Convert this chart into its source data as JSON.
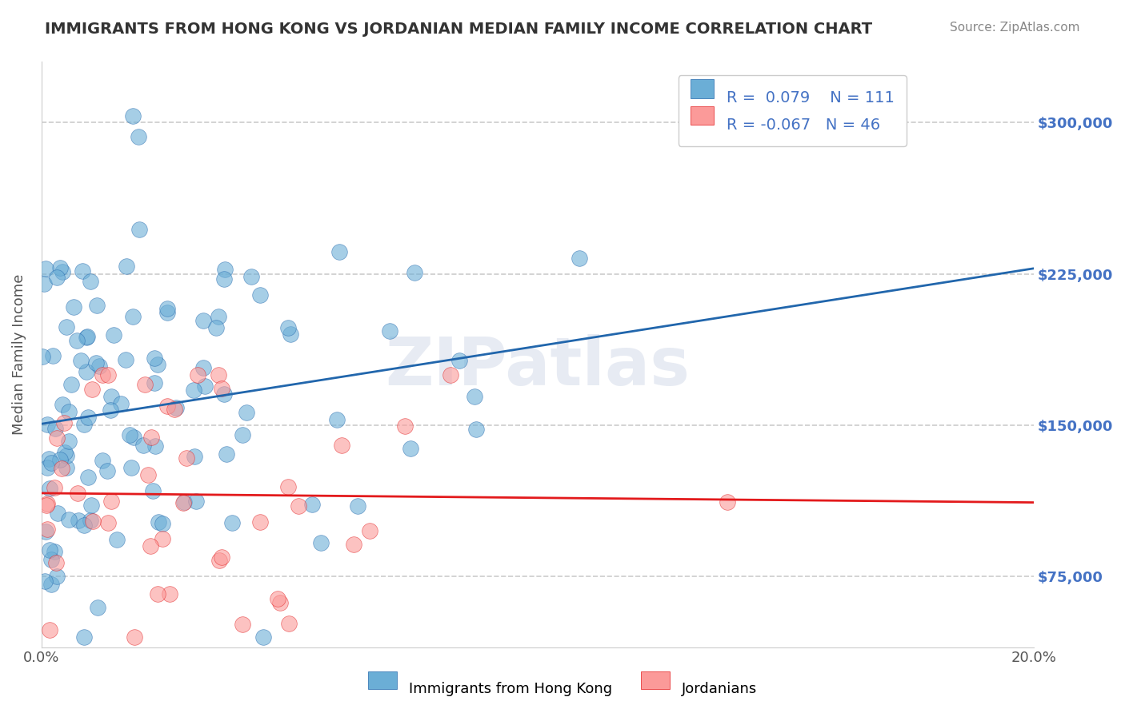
{
  "title": "IMMIGRANTS FROM HONG KONG VS JORDANIAN MEDIAN FAMILY INCOME CORRELATION CHART",
  "source": "Source: ZipAtlas.com",
  "xlabel": "",
  "ylabel": "Median Family Income",
  "legend_label_1": "Immigrants from Hong Kong",
  "legend_label_2": "Jordanians",
  "r1": 0.079,
  "n1": 111,
  "r2": -0.067,
  "n2": 46,
  "color1": "#6baed6",
  "color2": "#fb9a99",
  "line_color1": "#2166ac",
  "line_color2": "#e31a1c",
  "xmin": 0.0,
  "xmax": 0.2,
  "ymin": 40000,
  "ymax": 330000,
  "yticks": [
    75000,
    150000,
    225000,
    300000
  ],
  "ytick_labels": [
    "$75,000",
    "$150,000",
    "$225,000",
    "$300,000"
  ],
  "xtick_labels": [
    "0.0%",
    "20.0%"
  ],
  "watermark": "ZIPatlas",
  "background_color": "#ffffff",
  "grid_color": "#cccccc",
  "title_color": "#333333",
  "source_color": "#888888",
  "axis_color": "#cccccc",
  "right_tick_color": "#4472c4"
}
